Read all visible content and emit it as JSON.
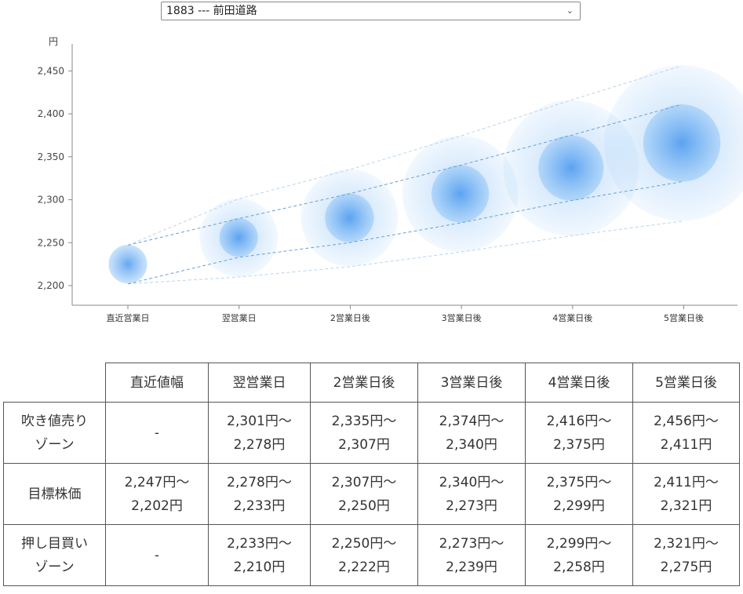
{
  "select": {
    "value": "1883 --- 前田道路"
  },
  "chart_data": {
    "type": "scatter",
    "ylabel": "円",
    "ylim": [
      2180,
      2480
    ],
    "yticks": [
      2200,
      2250,
      2300,
      2350,
      2400,
      2450
    ],
    "categories": [
      "直近営業日",
      "翌営業日",
      "2営業日後",
      "3営業日後",
      "4営業日後",
      "5営業日後"
    ],
    "center": [
      2225,
      2256,
      2279,
      2307,
      2337,
      2366
    ],
    "target_high": [
      2247,
      2278,
      2307,
      2340,
      2375,
      2411
    ],
    "target_low": [
      2202,
      2233,
      2250,
      2273,
      2299,
      2321
    ],
    "outer_high": [
      2247,
      2301,
      2335,
      2374,
      2416,
      2456
    ],
    "outer_low": [
      2202,
      2210,
      2222,
      2239,
      2258,
      2275
    ],
    "bubble_color": "#7ab8f5"
  },
  "table": {
    "headers": [
      "",
      "直近値幅",
      "翌営業日",
      "2営業日後",
      "3営業日後",
      "4営業日後",
      "5営業日後"
    ],
    "rows": [
      {
        "label": [
          "吹き値売り",
          "ゾーン"
        ],
        "cells": [
          [
            "-"
          ],
          [
            "2,301円～",
            "2,278円"
          ],
          [
            "2,335円～",
            "2,307円"
          ],
          [
            "2,374円～",
            "2,340円"
          ],
          [
            "2,416円～",
            "2,375円"
          ],
          [
            "2,456円～",
            "2,411円"
          ]
        ]
      },
      {
        "label": [
          "目標株価"
        ],
        "cells": [
          [
            "2,247円～",
            "2,202円"
          ],
          [
            "2,278円～",
            "2,233円"
          ],
          [
            "2,307円～",
            "2,250円"
          ],
          [
            "2,340円～",
            "2,273円"
          ],
          [
            "2,375円～",
            "2,299円"
          ],
          [
            "2,411円～",
            "2,321円"
          ]
        ]
      },
      {
        "label": [
          "押し目買い",
          "ゾーン"
        ],
        "cells": [
          [
            "-"
          ],
          [
            "2,233円～",
            "2,210円"
          ],
          [
            "2,250円～",
            "2,222円"
          ],
          [
            "2,273円～",
            "2,239円"
          ],
          [
            "2,299円～",
            "2,258円"
          ],
          [
            "2,321円～",
            "2,275円"
          ]
        ]
      }
    ]
  }
}
